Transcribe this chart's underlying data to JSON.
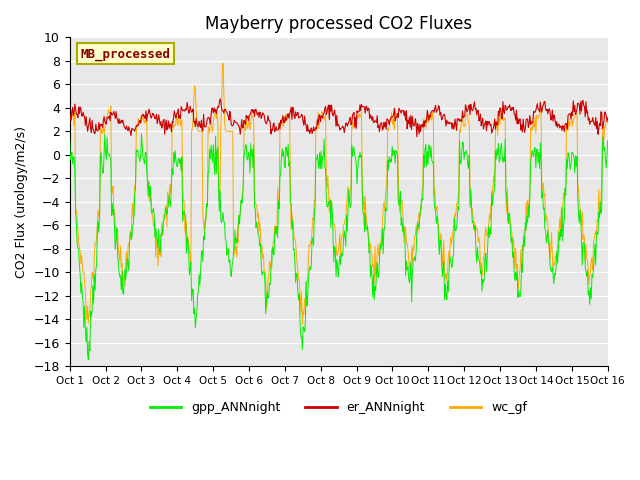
{
  "title": "Mayberry processed CO2 Fluxes",
  "ylabel": "CO2 Flux (urology/m2/s)",
  "ylim": [
    -18,
    10
  ],
  "yticks": [
    -18,
    -16,
    -14,
    -12,
    -10,
    -8,
    -6,
    -4,
    -2,
    0,
    2,
    4,
    6,
    8,
    10
  ],
  "xtick_labels": [
    "Oct 1",
    "Oct 2",
    "Oct 3",
    "Oct 4",
    "Oct 5",
    "Oct 6",
    "Oct 7",
    "Oct 8",
    "Oct 9",
    "Oct 10",
    "Oct 11",
    "Oct 12",
    "Oct 13",
    "Oct 14",
    "Oct 15",
    "Oct 16"
  ],
  "legend_label": "MB_processed",
  "legend_text_color": "#880000",
  "legend_box_bg": "#ffffcc",
  "legend_box_edge": "#aaaa00",
  "colors": {
    "gpp": "#00ee00",
    "er": "#cc0000",
    "wc": "#ffaa00"
  },
  "line_labels": [
    "gpp_ANNnight",
    "er_ANNnight",
    "wc_gf"
  ],
  "bg_color": "#e8e8e8",
  "fig_bg": "#ffffff",
  "n_points": 720
}
